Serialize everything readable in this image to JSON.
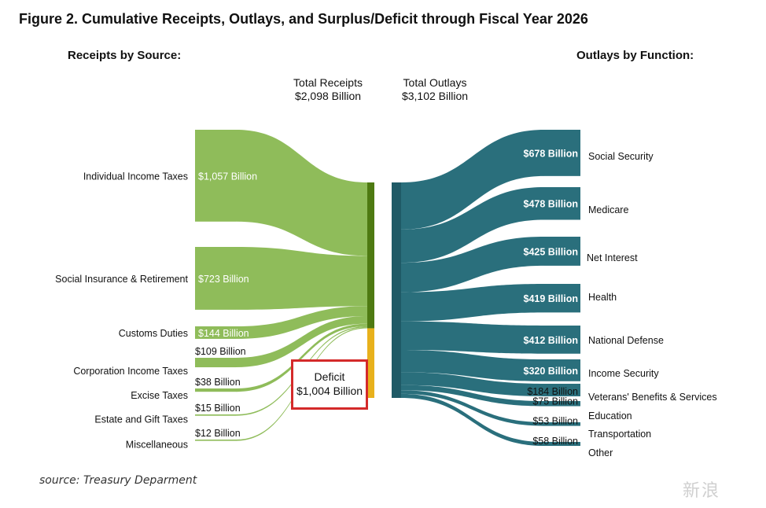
{
  "chart_data": {
    "type": "sankey",
    "title": "Figure 2. Cumulative Receipts, Outlays, and Surplus/Deficit through Fiscal Year 2026",
    "receipts_heading": "Receipts by Source:",
    "outlays_heading": "Outlays by Function:",
    "total_receipts": {
      "label": "Total Receipts",
      "value": 2098,
      "value_label": "$2,098 Billion"
    },
    "total_outlays": {
      "label": "Total Outlays",
      "value": 3102,
      "value_label": "$3,102 Billion"
    },
    "deficit": {
      "label": "Deficit",
      "value": 1004,
      "value_label": "$1,004 Billion"
    },
    "receipts": [
      {
        "name": "Individual Income Taxes",
        "value": 1057,
        "value_label": "$1,057 Billion"
      },
      {
        "name": "Social Insurance & Retirement",
        "value": 723,
        "value_label": "$723 Billion"
      },
      {
        "name": "Customs Duties",
        "value": 144,
        "value_label": "$144 Billion"
      },
      {
        "name": "Corporation Income Taxes",
        "value": 109,
        "value_label": "$109 Billion"
      },
      {
        "name": "Excise Taxes",
        "value": 38,
        "value_label": "$38 Billion"
      },
      {
        "name": "Estate and Gift Taxes",
        "value": 15,
        "value_label": "$15 Billion"
      },
      {
        "name": "Miscellaneous",
        "value": 12,
        "value_label": "$12 Billion"
      }
    ],
    "outlays": [
      {
        "name": "Social Security",
        "value": 678,
        "value_label": "$678 Billion"
      },
      {
        "name": "Medicare",
        "value": 478,
        "value_label": "$478 Billion"
      },
      {
        "name": "Net Interest",
        "value": 425,
        "value_label": "$425 Billion"
      },
      {
        "name": "Health",
        "value": 419,
        "value_label": "$419 Billion"
      },
      {
        "name": "National Defense",
        "value": 412,
        "value_label": "$412 Billion"
      },
      {
        "name": "Income Security",
        "value": 320,
        "value_label": "$320 Billion"
      },
      {
        "name": "Veterans' Benefits & Services",
        "value": 184,
        "value_label": "$184 Billion"
      },
      {
        "name": "Education",
        "value": 75,
        "value_label": "$75 Billion"
      },
      {
        "name": "Transportation",
        "value": 53,
        "value_label": "$53 Billion"
      },
      {
        "name": "Other",
        "value": 58,
        "value_label": "$58 Billion"
      }
    ],
    "colors": {
      "receipts": "#8fbc5a",
      "receipts_bar": "#4e7a12",
      "deficit_bar": "#e8b11c",
      "outlays": "#2a6f7c",
      "outlays_bar": "#1f5a66",
      "deficit_box_border": "#d42a2a"
    }
  },
  "source": "source: Treasury Deparment",
  "watermark": "新浪"
}
